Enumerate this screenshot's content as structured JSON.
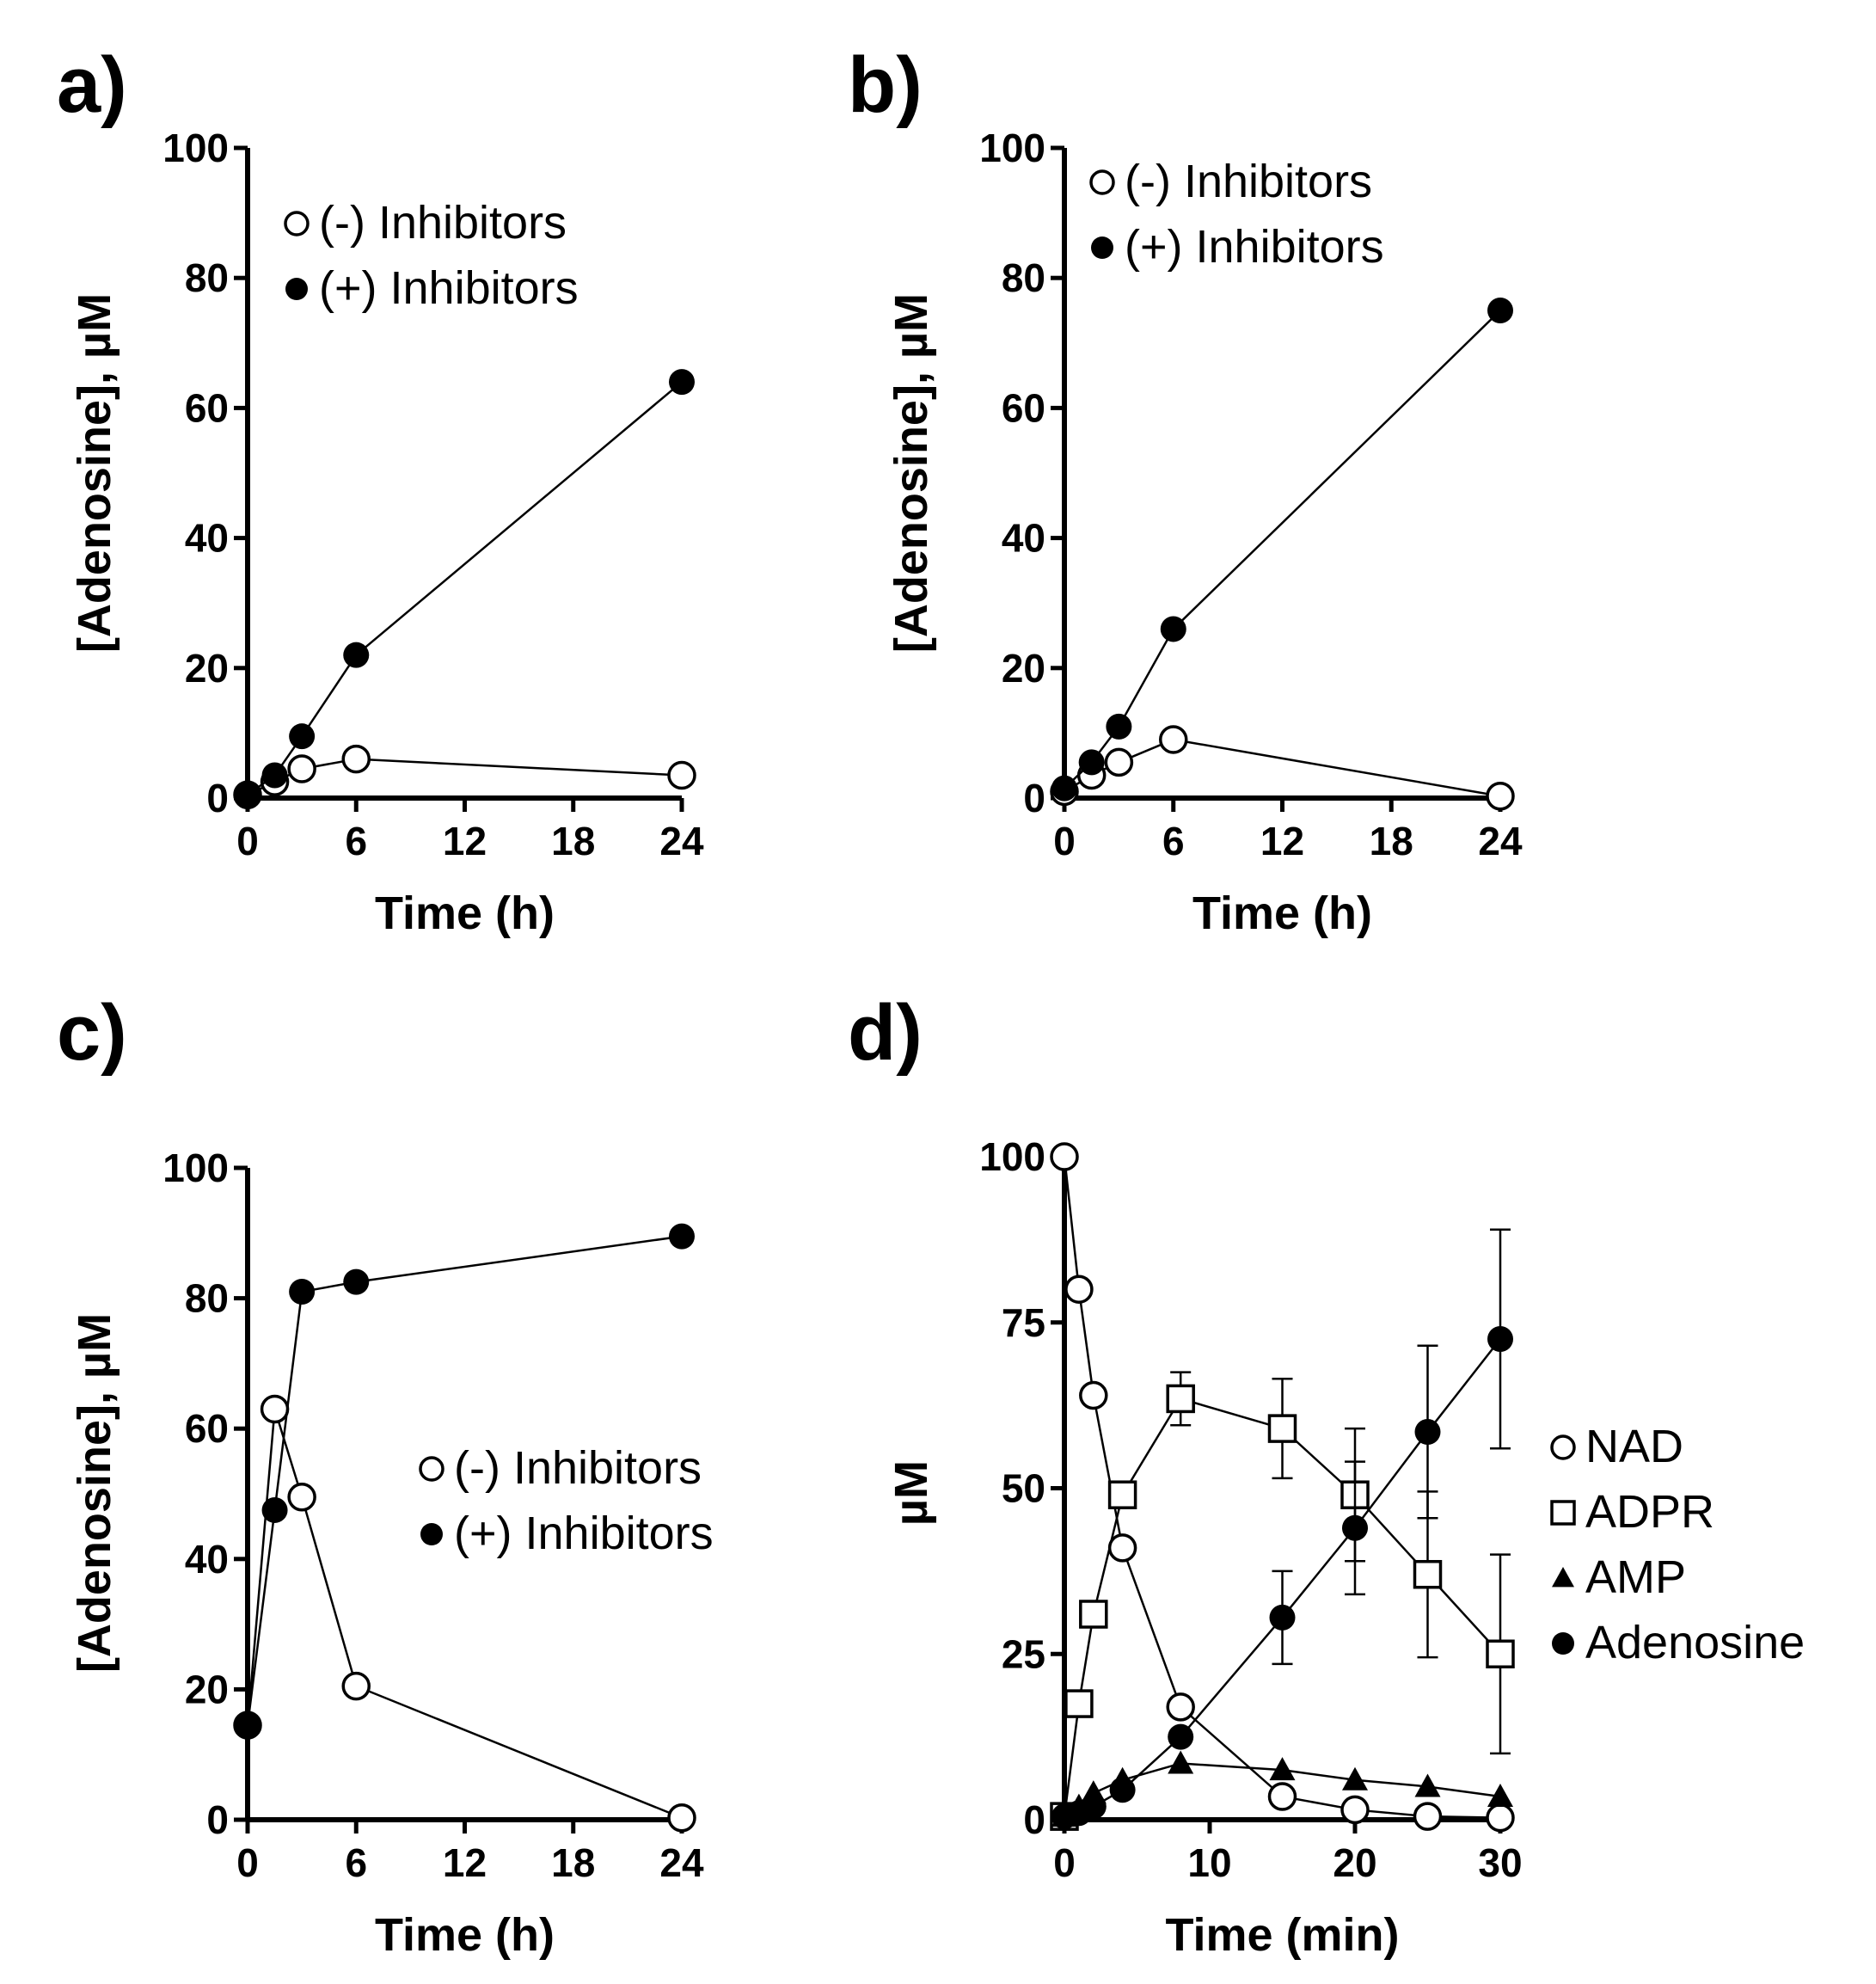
{
  "chart_data": [
    {
      "panel": "a)",
      "type": "line",
      "xlabel": "Time (h)",
      "ylabel": "[Adenosine], µM",
      "xlim": [
        0,
        24
      ],
      "ylim": [
        0,
        100
      ],
      "xticks": [
        0,
        6,
        12,
        18,
        24
      ],
      "yticks": [
        0,
        20,
        40,
        60,
        80,
        100
      ],
      "legend_position": "top-left",
      "series": [
        {
          "name": "(-) Inhibitors",
          "marker": "open-circle",
          "x": [
            0,
            1.5,
            3,
            6,
            24
          ],
          "y": [
            0.5,
            2.5,
            4.5,
            6,
            3.5
          ]
        },
        {
          "name": "(+) Inhibitors",
          "marker": "filled-circle",
          "x": [
            0,
            1.5,
            3,
            6,
            24
          ],
          "y": [
            0.5,
            3.5,
            9.5,
            22,
            64
          ]
        }
      ]
    },
    {
      "panel": "b)",
      "type": "line",
      "xlabel": "Time (h)",
      "ylabel": "[Adenosine], µM",
      "xlim": [
        0,
        24
      ],
      "ylim": [
        0,
        100
      ],
      "xticks": [
        0,
        6,
        12,
        18,
        24
      ],
      "yticks": [
        0,
        20,
        40,
        60,
        80,
        100
      ],
      "legend_position": "top-left",
      "series": [
        {
          "name": "(-) Inhibitors",
          "marker": "open-circle",
          "x": [
            0,
            1.5,
            3,
            6,
            24
          ],
          "y": [
            1,
            3.5,
            5.5,
            9,
            0.3
          ]
        },
        {
          "name": "(+) Inhibitors",
          "marker": "filled-circle",
          "x": [
            0,
            1.5,
            3,
            6,
            24
          ],
          "y": [
            1.5,
            5.5,
            11,
            26,
            75
          ]
        }
      ]
    },
    {
      "panel": "c)",
      "type": "line",
      "xlabel": "Time (h)",
      "ylabel": "[Adenosine], µM",
      "xlim": [
        0,
        24
      ],
      "ylim": [
        0,
        100
      ],
      "xticks": [
        0,
        6,
        12,
        18,
        24
      ],
      "yticks": [
        0,
        20,
        40,
        60,
        80,
        100
      ],
      "legend_position": "middle-right",
      "series": [
        {
          "name": "(-) Inhibitors",
          "marker": "open-circle",
          "x": [
            0,
            1.5,
            3,
            6,
            24
          ],
          "y": [
            14.5,
            63,
            49.5,
            20.5,
            0.3
          ]
        },
        {
          "name": "(+) Inhibitors",
          "marker": "filled-circle",
          "x": [
            0,
            1.5,
            3,
            6,
            24
          ],
          "y": [
            14.5,
            47.5,
            81,
            82.5,
            89.5
          ]
        }
      ]
    },
    {
      "panel": "d)",
      "type": "line",
      "xlabel": "Time (min)",
      "ylabel": "µM",
      "xlim": [
        0,
        30
      ],
      "ylim": [
        0,
        100
      ],
      "xticks": [
        0,
        10,
        20,
        30
      ],
      "yticks": [
        0,
        25,
        50,
        75,
        100
      ],
      "legend_position": "right",
      "series": [
        {
          "name": "NAD",
          "marker": "open-circle",
          "x": [
            0,
            1,
            2,
            4,
            8,
            15,
            20,
            25,
            30
          ],
          "y": [
            100,
            80,
            64,
            41,
            17,
            3.5,
            1.5,
            0.5,
            0.3
          ],
          "err": null
        },
        {
          "name": "ADPR",
          "marker": "open-square",
          "x": [
            0,
            1,
            2,
            4,
            8,
            15,
            20,
            25,
            30
          ],
          "y": [
            0.5,
            17.5,
            31,
            49,
            63.5,
            59,
            49,
            37,
            25
          ],
          "err": [
            0,
            0,
            0,
            2,
            4,
            7.5,
            10,
            12.5,
            15
          ]
        },
        {
          "name": "AMP",
          "marker": "filled-triangle",
          "x": [
            0,
            1,
            2,
            4,
            8,
            15,
            20,
            25,
            30
          ],
          "y": [
            0.5,
            2,
            4,
            6,
            8.5,
            7.5,
            6,
            5,
            3.5
          ],
          "err": null
        },
        {
          "name": "Adenosine",
          "marker": "filled-circle",
          "x": [
            0,
            1,
            2,
            4,
            8,
            15,
            20,
            25,
            30
          ],
          "y": [
            0.5,
            1,
            2,
            4.5,
            12.5,
            30.5,
            44,
            58.5,
            72.5
          ],
          "err": [
            0,
            0,
            0,
            0,
            0,
            7,
            10,
            13,
            16.5
          ]
        }
      ]
    }
  ]
}
